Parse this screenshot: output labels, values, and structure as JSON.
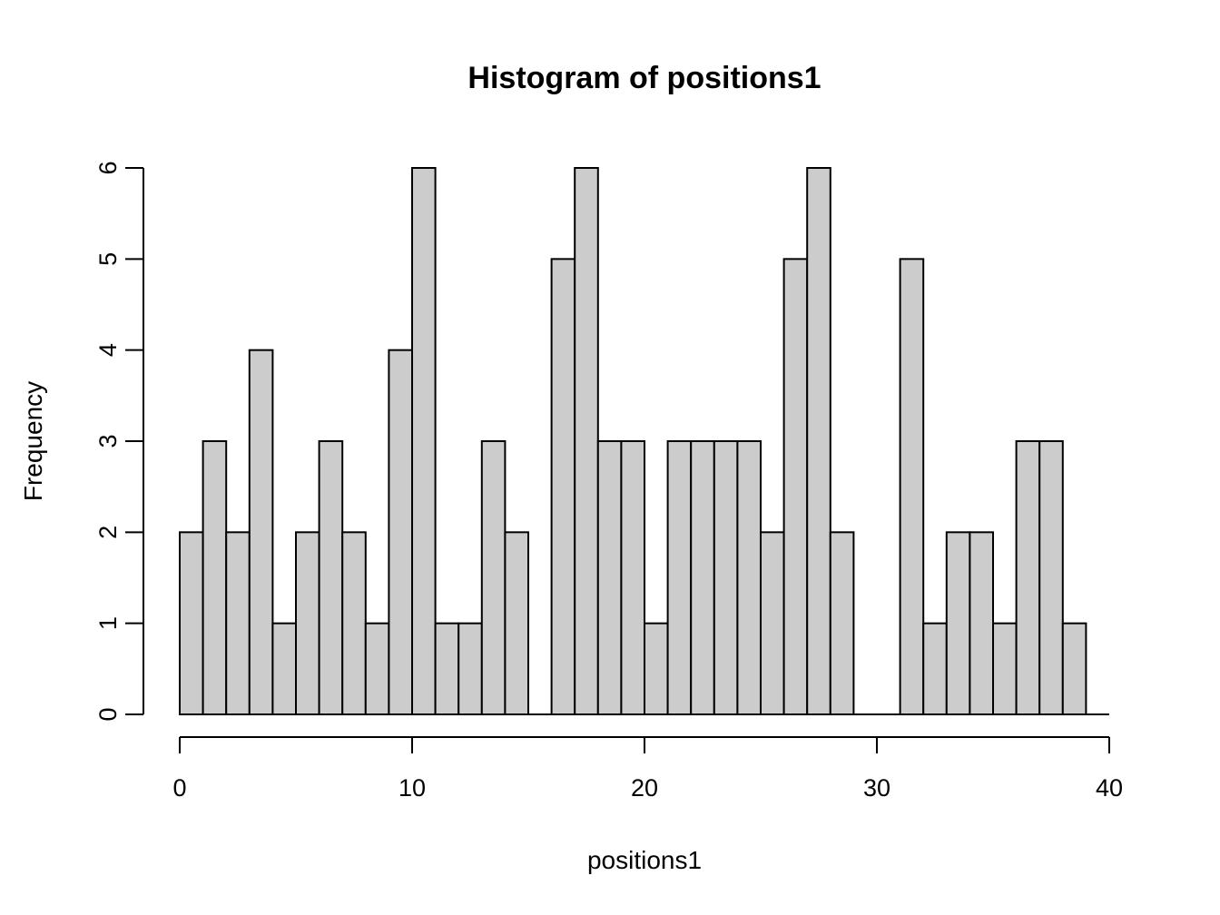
{
  "chart_data": {
    "type": "bar",
    "subtype": "histogram",
    "title": "Histogram of positions1",
    "xlabel": "positions1",
    "ylabel": "Frequency",
    "xlim": [
      0,
      40
    ],
    "ylim": [
      0,
      6
    ],
    "bin_width": 1,
    "bin_edges_start": 0,
    "bin_edges_end": 40,
    "counts": [
      2,
      3,
      2,
      4,
      1,
      2,
      3,
      2,
      1,
      4,
      6,
      1,
      1,
      3,
      2,
      0,
      5,
      6,
      3,
      3,
      1,
      3,
      3,
      3,
      3,
      2,
      5,
      6,
      2,
      0,
      0,
      5,
      1,
      2,
      2,
      1,
      3,
      3,
      1,
      0
    ],
    "x_ticks": [
      0,
      10,
      20,
      30,
      40
    ],
    "y_ticks": [
      0,
      1,
      2,
      3,
      4,
      5,
      6
    ],
    "grid": false,
    "legend": null,
    "bar_fill": "#cccccc",
    "bar_stroke": "#000000",
    "axis_color": "#000000",
    "background": "#ffffff"
  }
}
